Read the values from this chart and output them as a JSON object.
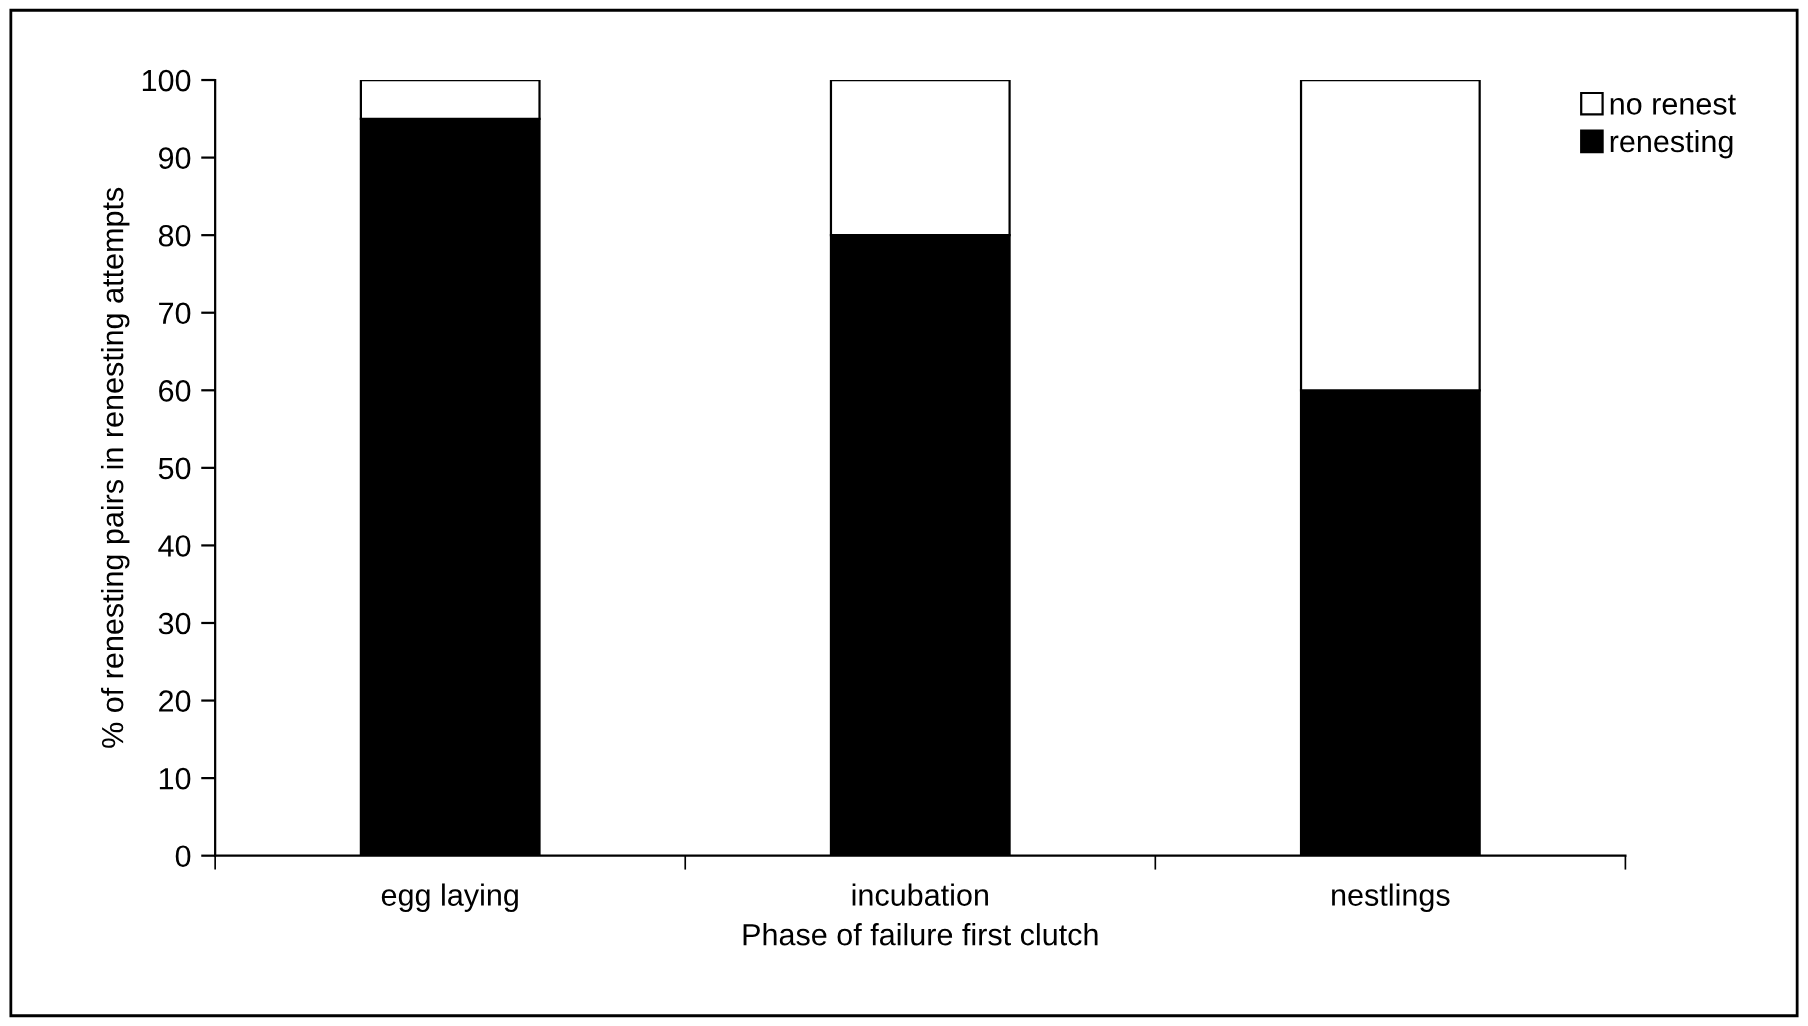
{
  "chart_data": {
    "type": "bar",
    "stacked": true,
    "xlabel": "Phase of failure first clutch",
    "ylabel": "% of renesting pairs in renesting attempts",
    "categories": [
      "egg laying",
      "incubation",
      "nestlings"
    ],
    "series": [
      {
        "name": "renesting",
        "color": "#000000",
        "values": [
          95,
          80,
          60
        ]
      },
      {
        "name": "no renest",
        "color": "#ffffff",
        "values": [
          5,
          20,
          40
        ]
      }
    ],
    "ylim": [
      0,
      100
    ],
    "yticks": [
      0,
      10,
      20,
      30,
      40,
      50,
      60,
      70,
      80,
      90,
      100
    ],
    "grid": false,
    "legend": "top right"
  }
}
